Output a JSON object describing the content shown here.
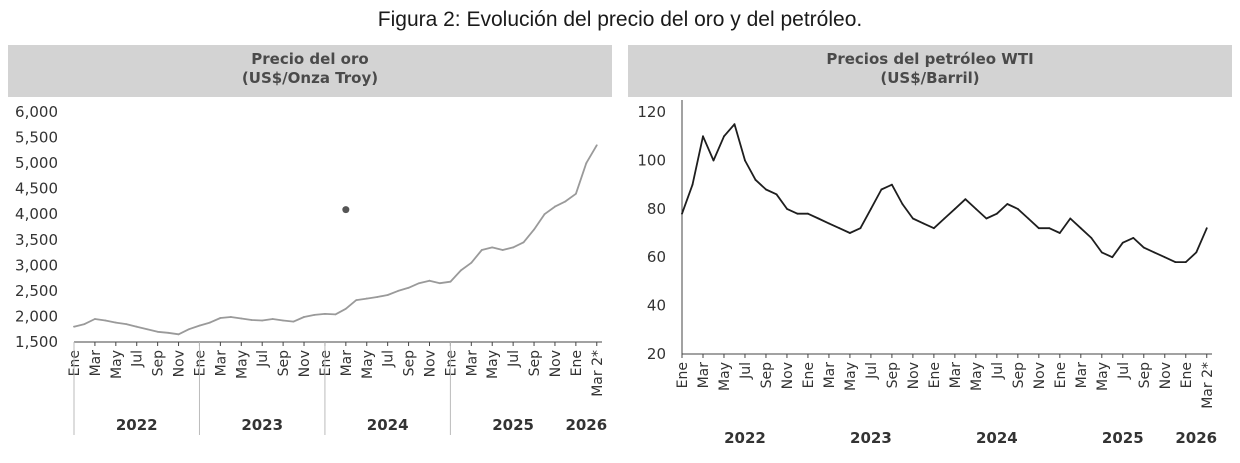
{
  "figure_title": "Figura 2: Evolución del precio del oro y del petróleo.",
  "colors": {
    "gold_line": "#9a9a9a",
    "oil_line": "#1e1e1e",
    "header_bg": "#d3d3d3",
    "axis": "#444444"
  },
  "chart_data": [
    {
      "type": "line",
      "title": "Precio del oro",
      "subtitle": "(US$/Onza Troy)",
      "ylim": [
        1500,
        6000
      ],
      "yticks": [
        "1,500",
        "2,000",
        "2,500",
        "3,000",
        "3,500",
        "4,000",
        "4,500",
        "5,000",
        "5,500",
        "6,000"
      ],
      "ytick_values": [
        1500,
        2000,
        2500,
        3000,
        3500,
        4000,
        4500,
        5000,
        5500,
        6000
      ],
      "month_ticks": [
        "Ene",
        "Mar",
        "May",
        "Jul",
        "Sep",
        "Nov",
        "Ene",
        "Mar",
        "May",
        "Jul",
        "Sep",
        "Nov",
        "Ene",
        "Mar",
        "May",
        "Jul",
        "Sep",
        "Nov",
        "Ene",
        "Mar",
        "May",
        "Jul",
        "Sep",
        "Nov",
        "Ene",
        "Mar 2*"
      ],
      "month_tick_positions": [
        0,
        2,
        4,
        6,
        8,
        10,
        12,
        14,
        16,
        18,
        20,
        22,
        24,
        26,
        28,
        30,
        32,
        34,
        36,
        38,
        40,
        42,
        44,
        46,
        48,
        50
      ],
      "years": [
        "2022",
        "2023",
        "2024",
        "2025",
        "2026"
      ],
      "year_positions": [
        6,
        18,
        30,
        42,
        49
      ],
      "x_range": [
        0,
        50.5
      ],
      "series": [
        {
          "name": "Oro",
          "x": [
            0,
            1,
            2,
            3,
            4,
            5,
            6,
            7,
            8,
            9,
            10,
            11,
            12,
            13,
            14,
            15,
            16,
            17,
            18,
            19,
            20,
            21,
            22,
            23,
            24,
            25,
            26,
            27,
            28,
            29,
            30,
            31,
            32,
            33,
            34,
            35,
            36,
            37,
            38,
            39,
            40,
            41,
            42,
            43,
            44,
            45,
            46,
            47,
            48,
            49,
            50
          ],
          "values": [
            1800,
            1850,
            1950,
            1920,
            1880,
            1850,
            1800,
            1750,
            1700,
            1680,
            1650,
            1750,
            1820,
            1880,
            1970,
            1990,
            1960,
            1930,
            1920,
            1950,
            1920,
            1900,
            1990,
            2030,
            2050,
            2040,
            2150,
            2320,
            2350,
            2380,
            2420,
            2500,
            2560,
            2650,
            2700,
            2650,
            2680,
            2900,
            3050,
            3300,
            3350,
            3300,
            3350,
            3450,
            3700,
            4000,
            4150,
            4250,
            4400,
            5000,
            5350
          ]
        }
      ],
      "annotation_point": {
        "x": 26,
        "y": 4090
      }
    },
    {
      "type": "line",
      "title": "Precios del petróleo WTI",
      "subtitle": "(US$/Barril)",
      "ylim": [
        20,
        125
      ],
      "yticks": [
        "20",
        "40",
        "60",
        "80",
        "100",
        "120"
      ],
      "ytick_values": [
        20,
        40,
        60,
        80,
        100,
        120
      ],
      "month_ticks": [
        "Ene",
        "Mar",
        "May",
        "Jul",
        "Sep",
        "Nov",
        "Ene",
        "Mar",
        "May",
        "Jul",
        "Sep",
        "Nov",
        "Ene",
        "Mar",
        "May",
        "Jul",
        "Sep",
        "Nov",
        "Ene",
        "Mar",
        "May",
        "Jul",
        "Sep",
        "Nov",
        "Ene",
        "Mar 2*"
      ],
      "month_tick_positions": [
        0,
        2,
        4,
        6,
        8,
        10,
        12,
        14,
        16,
        18,
        20,
        22,
        24,
        26,
        28,
        30,
        32,
        34,
        36,
        38,
        40,
        42,
        44,
        46,
        48,
        50
      ],
      "years": [
        "2022",
        "2023",
        "2024",
        "2025",
        "2026"
      ],
      "year_positions": [
        6,
        18,
        30,
        42,
        49
      ],
      "x_range": [
        0,
        50.5
      ],
      "series": [
        {
          "name": "WTI",
          "x": [
            0,
            1,
            2,
            3,
            4,
            5,
            6,
            7,
            8,
            9,
            10,
            11,
            12,
            13,
            14,
            15,
            16,
            17,
            18,
            19,
            20,
            21,
            22,
            23,
            24,
            25,
            26,
            27,
            28,
            29,
            30,
            31,
            32,
            33,
            34,
            35,
            36,
            37,
            38,
            39,
            40,
            41,
            42,
            43,
            44,
            45,
            46,
            47,
            48,
            49,
            50
          ],
          "values": [
            78,
            90,
            110,
            100,
            110,
            115,
            100,
            92,
            88,
            86,
            80,
            78,
            78,
            76,
            74,
            72,
            70,
            72,
            80,
            88,
            90,
            82,
            76,
            74,
            72,
            76,
            80,
            84,
            80,
            76,
            78,
            82,
            80,
            76,
            72,
            72,
            70,
            76,
            72,
            68,
            62,
            60,
            66,
            68,
            64,
            62,
            60,
            58,
            58,
            62,
            72
          ]
        }
      ]
    }
  ]
}
